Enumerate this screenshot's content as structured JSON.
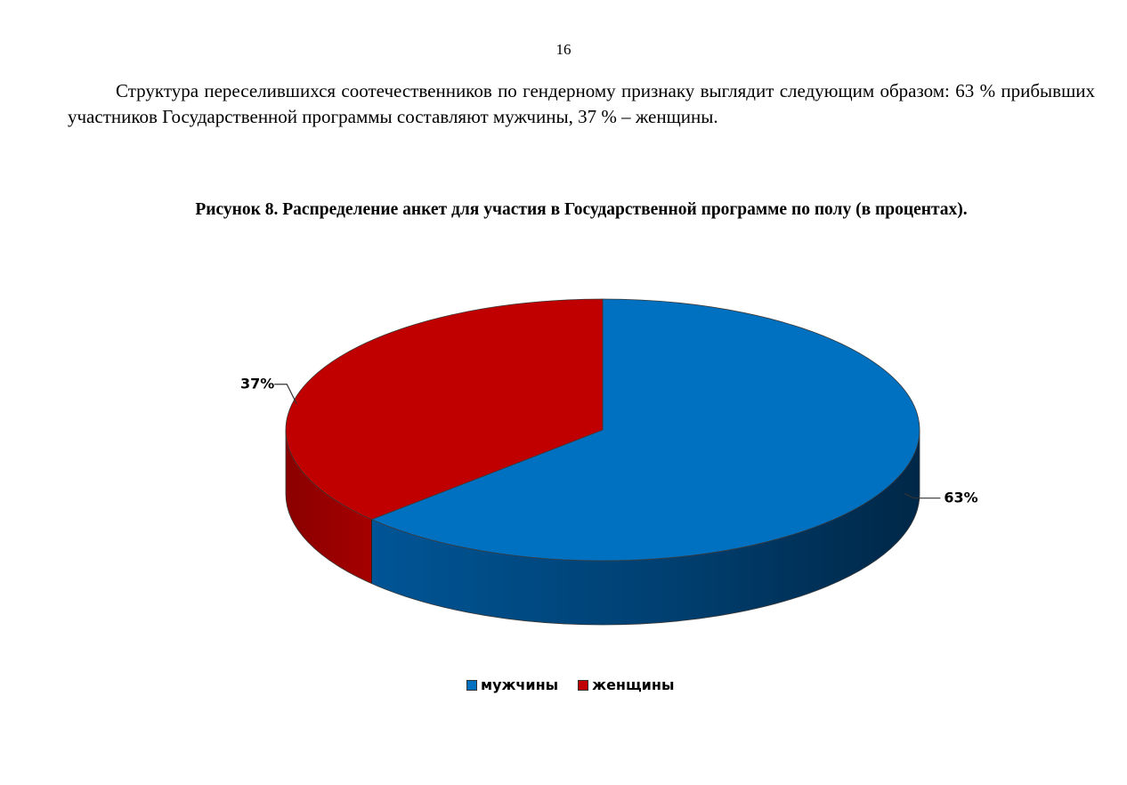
{
  "page": {
    "number": "16",
    "paragraph": "Структура переселившихся соотечественников по гендерному признаку выглядит следующим образом: 63 % прибывших участников Государственной программы составляют мужчины, 37 % – женщины.",
    "figure_caption": "Рисунок 8. Распределение анкет для участия в Государственной программе по полу (в процентах)."
  },
  "chart_data": {
    "type": "pie",
    "style": "3d",
    "title": "Рисунок 8. Распределение анкет для участия в Государственной программе по полу (в процентах).",
    "categories": [
      "мужчины",
      "женщины"
    ],
    "values": [
      63,
      37
    ],
    "data_labels": [
      "63%",
      "37%"
    ],
    "colors": [
      "#0070C0",
      "#C00000"
    ],
    "legend": "bottom"
  }
}
